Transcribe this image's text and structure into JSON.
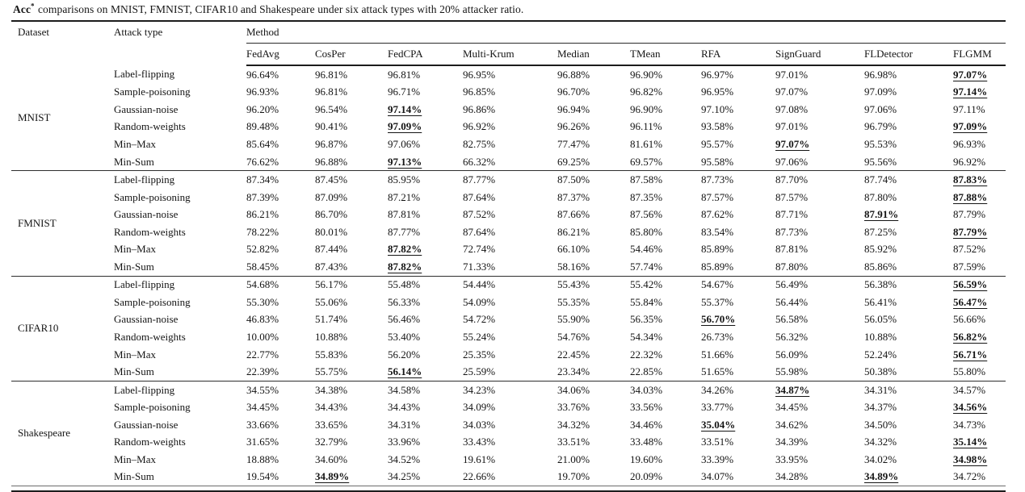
{
  "caption": {
    "bold": "Acc",
    "superscript": "*",
    "rest": "comparisons on MNIST, FMNIST, CIFAR10 and Shakespeare under six attack types with 20% attacker ratio."
  },
  "header": {
    "dataset": "Dataset",
    "attack_type": "Attack type",
    "method_group": "Method",
    "methods": [
      "FedAvg",
      "CosPer",
      "FedCPA",
      "Multi-Krum",
      "Median",
      "TMean",
      "RFA",
      "SignGuard",
      "FLDetector",
      "FLGMM"
    ]
  },
  "groups": [
    {
      "dataset": "MNIST",
      "rows": [
        {
          "attack": "Label-flipping",
          "values": [
            "96.64%",
            "96.81%",
            "96.81%",
            "96.95%",
            "96.88%",
            "96.90%",
            "96.97%",
            "97.01%",
            "96.98%",
            "97.07%"
          ],
          "best": [
            9
          ]
        },
        {
          "attack": "Sample-poisoning",
          "values": [
            "96.93%",
            "96.81%",
            "96.71%",
            "96.85%",
            "96.70%",
            "96.82%",
            "96.95%",
            "97.07%",
            "97.09%",
            "97.14%"
          ],
          "best": [
            9
          ]
        },
        {
          "attack": "Gaussian-noise",
          "values": [
            "96.20%",
            "96.54%",
            "97.14%",
            "96.86%",
            "96.94%",
            "96.90%",
            "97.10%",
            "97.08%",
            "97.06%",
            "97.11%"
          ],
          "best": [
            2
          ]
        },
        {
          "attack": "Random-weights",
          "values": [
            "89.48%",
            "90.41%",
            "97.09%",
            "96.92%",
            "96.26%",
            "96.11%",
            "93.58%",
            "97.01%",
            "96.79%",
            "97.09%"
          ],
          "best": [
            2,
            9
          ]
        },
        {
          "attack": "Min–Max",
          "values": [
            "85.64%",
            "96.87%",
            "97.06%",
            "82.75%",
            "77.47%",
            "81.61%",
            "95.57%",
            "97.07%",
            "95.53%",
            "96.93%"
          ],
          "best": [
            7
          ]
        },
        {
          "attack": "Min-Sum",
          "values": [
            "76.62%",
            "96.88%",
            "97.13%",
            "66.32%",
            "69.25%",
            "69.57%",
            "95.58%",
            "97.06%",
            "95.56%",
            "96.92%"
          ],
          "best": [
            2
          ]
        }
      ]
    },
    {
      "dataset": "FMNIST",
      "rows": [
        {
          "attack": "Label-flipping",
          "values": [
            "87.34%",
            "87.45%",
            "85.95%",
            "87.77%",
            "87.50%",
            "87.58%",
            "87.73%",
            "87.70%",
            "87.74%",
            "87.83%"
          ],
          "best": [
            9
          ]
        },
        {
          "attack": "Sample-poisoning",
          "values": [
            "87.39%",
            "87.09%",
            "87.21%",
            "87.64%",
            "87.37%",
            "87.35%",
            "87.57%",
            "87.57%",
            "87.80%",
            "87.88%"
          ],
          "best": [
            9
          ]
        },
        {
          "attack": "Gaussian-noise",
          "values": [
            "86.21%",
            "86.70%",
            "87.81%",
            "87.52%",
            "87.66%",
            "87.56%",
            "87.62%",
            "87.71%",
            "87.91%",
            "87.79%"
          ],
          "best": [
            8
          ]
        },
        {
          "attack": "Random-weights",
          "values": [
            "78.22%",
            "80.01%",
            "87.77%",
            "87.64%",
            "86.21%",
            "85.80%",
            "83.54%",
            "87.73%",
            "87.25%",
            "87.79%"
          ],
          "best": [
            9
          ]
        },
        {
          "attack": "Min–Max",
          "values": [
            "52.82%",
            "87.44%",
            "87.82%",
            "72.74%",
            "66.10%",
            "54.46%",
            "85.89%",
            "87.81%",
            "85.92%",
            "87.52%"
          ],
          "best": [
            2
          ]
        },
        {
          "attack": "Min-Sum",
          "values": [
            "58.45%",
            "87.43%",
            "87.82%",
            "71.33%",
            "58.16%",
            "57.74%",
            "85.89%",
            "87.80%",
            "85.86%",
            "87.59%"
          ],
          "best": [
            2
          ]
        }
      ]
    },
    {
      "dataset": "CIFAR10",
      "rows": [
        {
          "attack": "Label-flipping",
          "values": [
            "54.68%",
            "56.17%",
            "55.48%",
            "54.44%",
            "55.43%",
            "55.42%",
            "54.67%",
            "56.49%",
            "56.38%",
            "56.59%"
          ],
          "best": [
            9
          ]
        },
        {
          "attack": "Sample-poisoning",
          "values": [
            "55.30%",
            "55.06%",
            "56.33%",
            "54.09%",
            "55.35%",
            "55.84%",
            "55.37%",
            "56.44%",
            "56.41%",
            "56.47%"
          ],
          "best": [
            9
          ]
        },
        {
          "attack": "Gaussian-noise",
          "values": [
            "46.83%",
            "51.74%",
            "56.46%",
            "54.72%",
            "55.90%",
            "56.35%",
            "56.70%",
            "56.58%",
            "56.05%",
            "56.66%"
          ],
          "best": [
            6
          ]
        },
        {
          "attack": "Random-weights",
          "values": [
            "10.00%",
            "10.88%",
            "53.40%",
            "55.24%",
            "54.76%",
            "54.34%",
            "26.73%",
            "56.32%",
            "10.88%",
            "56.82%"
          ],
          "best": [
            9
          ]
        },
        {
          "attack": "Min–Max",
          "values": [
            "22.77%",
            "55.83%",
            "56.20%",
            "25.35%",
            "22.45%",
            "22.32%",
            "51.66%",
            "56.09%",
            "52.24%",
            "56.71%"
          ],
          "best": [
            9
          ]
        },
        {
          "attack": "Min-Sum",
          "values": [
            "22.39%",
            "55.75%",
            "56.14%",
            "25.59%",
            "23.34%",
            "22.85%",
            "51.65%",
            "55.98%",
            "50.38%",
            "55.80%"
          ],
          "best": [
            2
          ]
        }
      ]
    },
    {
      "dataset": "Shakespeare",
      "rows": [
        {
          "attack": "Label-flipping",
          "values": [
            "34.55%",
            "34.38%",
            "34.58%",
            "34.23%",
            "34.06%",
            "34.03%",
            "34.26%",
            "34.87%",
            "34.31%",
            "34.57%"
          ],
          "best": [
            7
          ]
        },
        {
          "attack": "Sample-poisoning",
          "values": [
            "34.45%",
            "34.43%",
            "34.43%",
            "34.09%",
            "33.76%",
            "33.56%",
            "33.77%",
            "34.45%",
            "34.37%",
            "34.56%"
          ],
          "best": [
            9
          ]
        },
        {
          "attack": "Gaussian-noise",
          "values": [
            "33.66%",
            "33.65%",
            "34.31%",
            "34.03%",
            "34.32%",
            "34.46%",
            "35.04%",
            "34.62%",
            "34.50%",
            "34.73%"
          ],
          "best": [
            6
          ]
        },
        {
          "attack": "Random-weights",
          "values": [
            "31.65%",
            "32.79%",
            "33.96%",
            "33.43%",
            "33.51%",
            "33.48%",
            "33.51%",
            "34.39%",
            "34.32%",
            "35.14%"
          ],
          "best": [
            9
          ]
        },
        {
          "attack": "Min–Max",
          "values": [
            "18.88%",
            "34.60%",
            "34.52%",
            "19.61%",
            "21.00%",
            "19.60%",
            "33.39%",
            "33.95%",
            "34.02%",
            "34.98%"
          ],
          "best": [
            9
          ]
        },
        {
          "attack": "Min-Sum",
          "values": [
            "19.54%",
            "34.89%",
            "34.25%",
            "22.66%",
            "19.70%",
            "20.09%",
            "34.07%",
            "34.28%",
            "34.89%",
            "34.72%"
          ],
          "best": [
            1,
            8
          ]
        }
      ]
    }
  ]
}
